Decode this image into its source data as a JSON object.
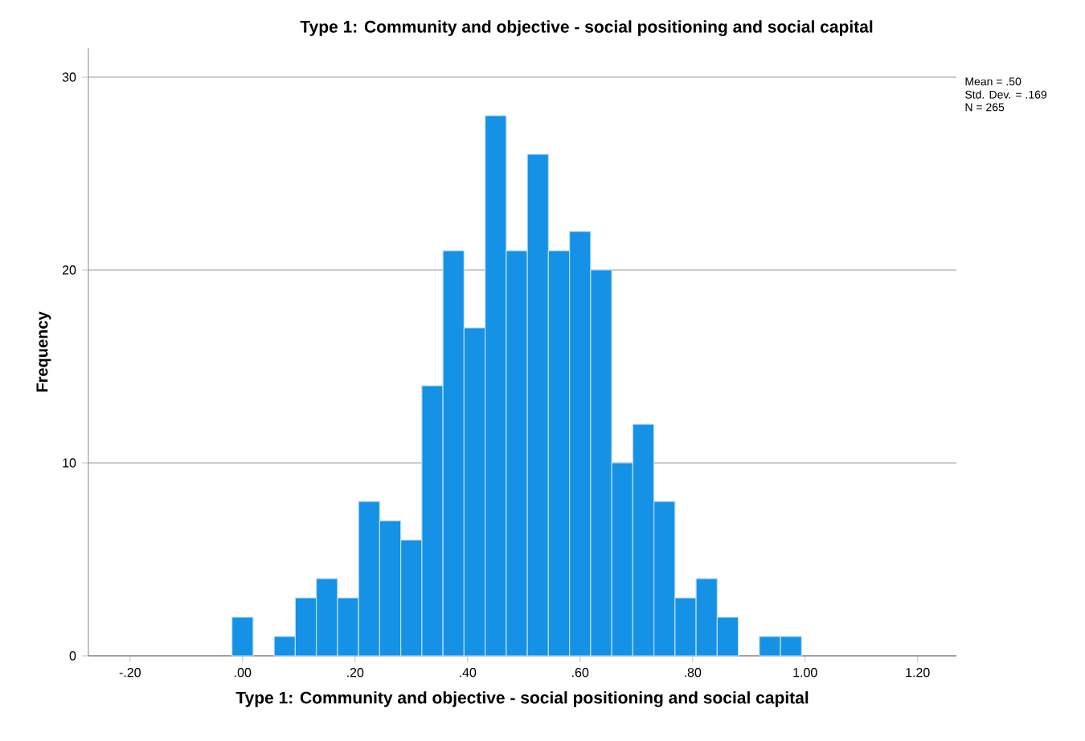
{
  "chart_data": {
    "type": "histogram",
    "title": "Type 1: Community and objective - social positioning and social capital",
    "xlabel": "Type 1: Community and objective - social positioning and social capital",
    "ylabel": "Frequency",
    "bins": [
      -0.01875,
      0.01875,
      0.05625,
      0.09375,
      0.13125,
      0.16875,
      0.20625,
      0.24375,
      0.28125,
      0.31875,
      0.35625,
      0.39375,
      0.43125,
      0.46875,
      0.50625,
      0.54375,
      0.58125,
      0.61875,
      0.65625,
      0.69375,
      0.73125,
      0.76875,
      0.80625,
      0.84375,
      0.88125,
      0.91875,
      0.95625,
      0.99375
    ],
    "values": [
      2,
      0,
      1,
      3,
      4,
      3,
      8,
      7,
      6,
      14,
      21,
      17,
      28,
      21,
      26,
      21,
      22,
      20,
      10,
      12,
      8,
      3,
      4,
      2,
      0,
      1,
      1
    ],
    "color": "#1591e5",
    "xlim": [
      -0.274,
      1.269
    ],
    "ylim": [
      0,
      31.5
    ],
    "xticks": [
      {
        "value": -0.2,
        "label": "-.20"
      },
      {
        "value": 0,
        "label": ".00"
      },
      {
        "value": 0.2,
        "label": ".20"
      },
      {
        "value": 0.4,
        "label": ".40"
      },
      {
        "value": 0.6,
        "label": ".60"
      },
      {
        "value": 0.8,
        "label": ".80"
      },
      {
        "value": 1.0,
        "label": "1.00"
      },
      {
        "value": 1.2,
        "label": "1.20"
      }
    ],
    "yticks": [
      0,
      10,
      20,
      30
    ],
    "grid": "y",
    "annotations": [
      "Mean = .50",
      "Std. Dev. = .169",
      "N = 265"
    ]
  }
}
